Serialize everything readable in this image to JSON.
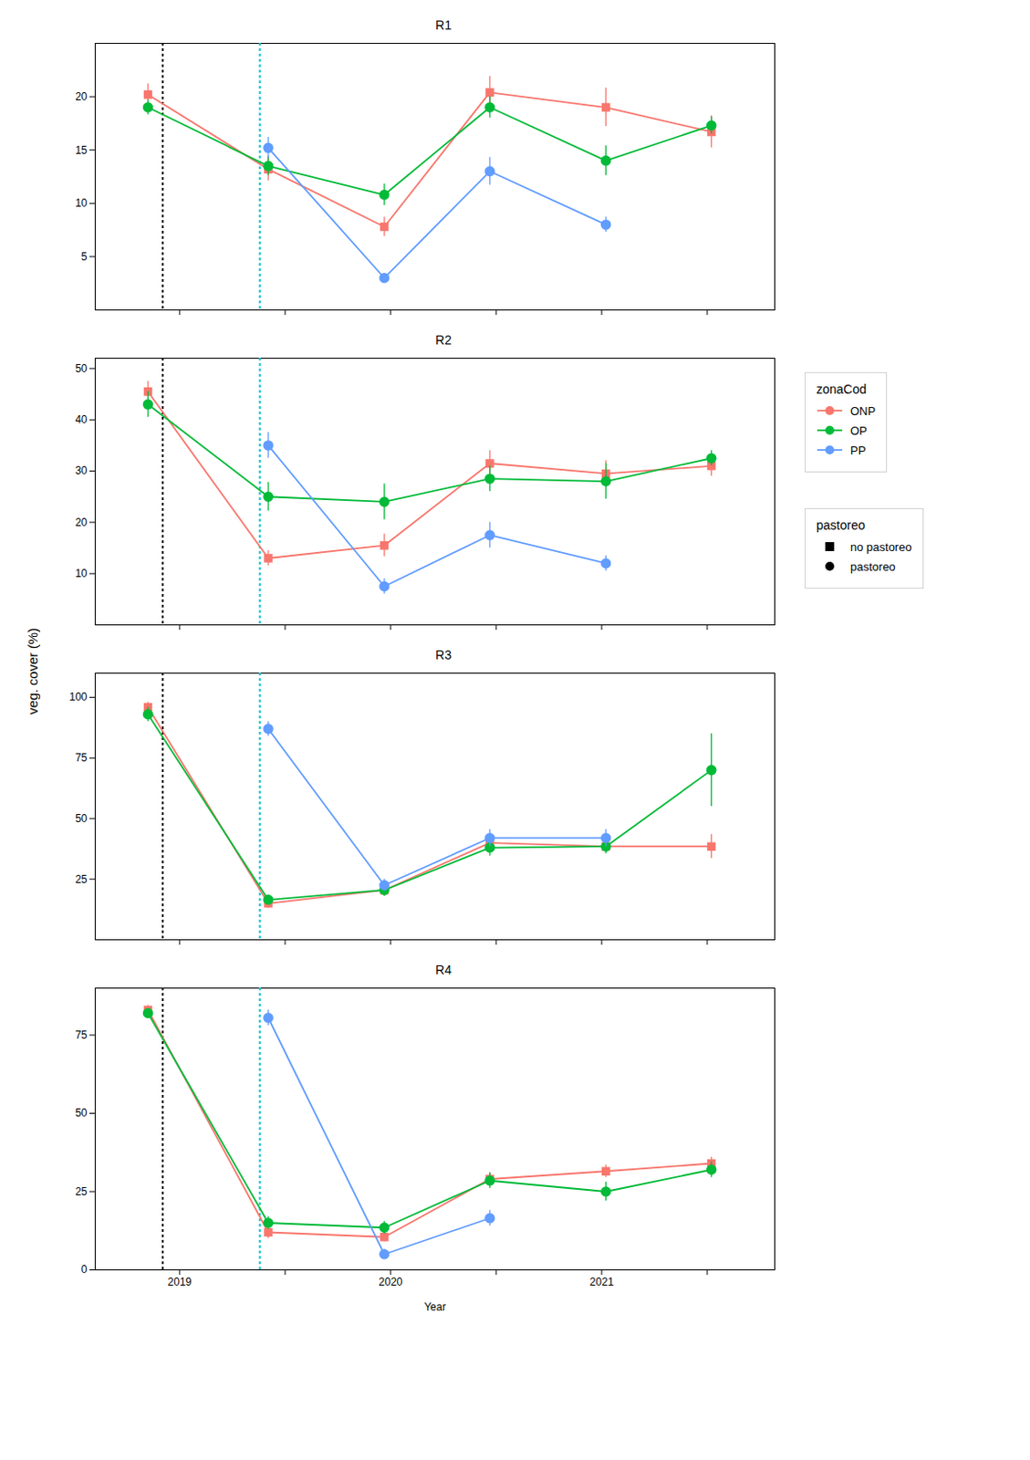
{
  "chart_data": [
    {
      "type": "line",
      "title": "R1",
      "x": [
        2018.85,
        2019.42,
        2019.97,
        2020.47,
        2021.02,
        2021.52
      ],
      "series": [
        {
          "name": "ONP",
          "color": "#F8766D",
          "marker": "square",
          "values": [
            20.2,
            13.2,
            7.8,
            20.4,
            19.0,
            16.7
          ],
          "err": [
            1.0,
            1.1,
            0.9,
            1.5,
            1.8,
            1.5
          ]
        },
        {
          "name": "OP",
          "color": "#00BA38",
          "marker": "circle",
          "values": [
            19.0,
            13.5,
            10.8,
            19.0,
            14.0,
            17.3
          ],
          "err": [
            0.7,
            0.9,
            1.0,
            1.0,
            1.4,
            0.8
          ]
        },
        {
          "name": "PP",
          "color": "#619CFF",
          "marker": "circle",
          "values": [
            null,
            15.2,
            3.0,
            13.0,
            8.0,
            null
          ],
          "err": [
            null,
            1.0,
            0.4,
            1.3,
            0.7,
            null
          ]
        }
      ],
      "xlim": [
        2018.6,
        2021.82
      ],
      "xticks": [
        2019,
        {
          "value": 2019.5,
          "label": ""
        },
        2020,
        {
          "value": 2020.5,
          "label": ""
        },
        2021,
        {
          "value": 2021.5,
          "label": ""
        }
      ],
      "ylim": [
        0,
        25
      ],
      "yticks": [
        5,
        10,
        15,
        20
      ],
      "tick_labels": "y",
      "grid": false,
      "vlines": [
        {
          "x": 2018.92,
          "color": "black",
          "line_style": "dotted"
        },
        {
          "x": 2019.38,
          "color": "#00C5CD",
          "line_style": "dotted"
        }
      ],
      "ylabel": "veg. cover (%)",
      "legend": "right",
      "legend_title": "zonaCod",
      "marker_legend": {
        "title": "pastoreo",
        "entries": [
          {
            "name": "no pastoreo",
            "marker": "square",
            "color": "black"
          },
          {
            "name": "pastoreo",
            "marker": "circle",
            "color": "black"
          }
        ]
      }
    },
    {
      "type": "line",
      "title": "R2",
      "x": [
        2018.85,
        2019.42,
        2019.97,
        2020.47,
        2021.02,
        2021.52
      ],
      "series": [
        {
          "name": "ONP",
          "color": "#F8766D",
          "marker": "square",
          "values": [
            45.5,
            13.0,
            15.5,
            31.5,
            29.5,
            31.0
          ],
          "err": [
            2.0,
            1.5,
            2.2,
            2.5,
            2.5,
            2.0
          ]
        },
        {
          "name": "OP",
          "color": "#00BA38",
          "marker": "circle",
          "values": [
            43.0,
            25.0,
            24.0,
            28.5,
            28.0,
            32.5
          ],
          "err": [
            2.5,
            2.8,
            3.5,
            2.5,
            3.5,
            1.5
          ]
        },
        {
          "name": "PP",
          "color": "#619CFF",
          "marker": "circle",
          "values": [
            null,
            35.0,
            7.5,
            17.5,
            12.0,
            null
          ],
          "err": [
            null,
            2.5,
            1.5,
            2.5,
            1.5,
            null
          ]
        }
      ],
      "xlim": [
        2018.6,
        2021.82
      ],
      "xticks": [
        2019,
        {
          "value": 2019.5,
          "label": ""
        },
        2020,
        {
          "value": 2020.5,
          "label": ""
        },
        2021,
        {
          "value": 2021.5,
          "label": ""
        }
      ],
      "ylim": [
        0,
        52
      ],
      "yticks": [
        10,
        20,
        30,
        40,
        50
      ],
      "tick_labels": "y",
      "grid": false,
      "vlines": [
        {
          "x": 2018.92,
          "color": "black",
          "line_style": "dotted"
        },
        {
          "x": 2019.38,
          "color": "#00C5CD",
          "line_style": "dotted"
        }
      ]
    },
    {
      "type": "line",
      "title": "R3",
      "x": [
        2018.85,
        2019.42,
        2019.97,
        2020.47,
        2021.02,
        2021.52
      ],
      "series": [
        {
          "name": "ONP",
          "color": "#F8766D",
          "marker": "square",
          "values": [
            96.0,
            15.0,
            20.5,
            40.0,
            38.5,
            38.5
          ],
          "err": [
            2.0,
            2.0,
            2.5,
            3.0,
            2.5,
            5.0
          ]
        },
        {
          "name": "OP",
          "color": "#00BA38",
          "marker": "circle",
          "values": [
            93.0,
            16.5,
            20.5,
            38.0,
            38.5,
            70.0
          ],
          "err": [
            3.0,
            2.0,
            2.5,
            3.5,
            3.0,
            15.0
          ]
        },
        {
          "name": "PP",
          "color": "#619CFF",
          "marker": "circle",
          "values": [
            null,
            87.0,
            22.5,
            42.0,
            42.0,
            null
          ],
          "err": [
            null,
            3.0,
            2.5,
            3.5,
            3.5,
            null
          ]
        }
      ],
      "xlim": [
        2018.6,
        2021.82
      ],
      "xticks": [
        2019,
        {
          "value": 2019.5,
          "label": ""
        },
        2020,
        {
          "value": 2020.5,
          "label": ""
        },
        2021,
        {
          "value": 2021.5,
          "label": ""
        }
      ],
      "ylim": [
        0,
        110
      ],
      "yticks": [
        25,
        50,
        75,
        100
      ],
      "tick_labels": "y",
      "grid": false,
      "vlines": [
        {
          "x": 2018.92,
          "color": "black",
          "line_style": "dotted"
        },
        {
          "x": 2019.38,
          "color": "#00C5CD",
          "line_style": "dotted"
        }
      ]
    },
    {
      "type": "line",
      "title": "R4",
      "x": [
        2018.85,
        2019.42,
        2019.97,
        2020.47,
        2021.02,
        2021.52
      ],
      "series": [
        {
          "name": "ONP",
          "color": "#F8766D",
          "marker": "square",
          "values": [
            83.0,
            12.0,
            10.5,
            29.0,
            31.5,
            34.0
          ],
          "err": [
            1.5,
            2.0,
            1.5,
            2.0,
            2.0,
            2.0
          ]
        },
        {
          "name": "OP",
          "color": "#00BA38",
          "marker": "circle",
          "values": [
            82.0,
            15.0,
            13.5,
            28.5,
            25.0,
            32.0
          ],
          "err": [
            1.5,
            2.0,
            2.0,
            2.5,
            3.0,
            2.5
          ]
        },
        {
          "name": "PP",
          "color": "#619CFF",
          "marker": "circle",
          "values": [
            null,
            80.5,
            5.0,
            16.5,
            null,
            null
          ],
          "err": [
            null,
            2.5,
            1.5,
            2.5,
            null,
            null
          ]
        }
      ],
      "xlim": [
        2018.6,
        2021.82
      ],
      "xticks": [
        2019,
        {
          "value": 2019.5,
          "label": ""
        },
        2020,
        {
          "value": 2020.5,
          "label": ""
        },
        2021,
        {
          "value": 2021.5,
          "label": ""
        }
      ],
      "ylim": [
        0,
        90
      ],
      "yticks": [
        0,
        25,
        50,
        75
      ],
      "grid": false,
      "vlines": [
        {
          "x": 2018.92,
          "color": "black",
          "line_style": "dotted"
        },
        {
          "x": 2019.38,
          "color": "#00C5CD",
          "line_style": "dotted"
        }
      ],
      "xlabel": "Year"
    }
  ]
}
